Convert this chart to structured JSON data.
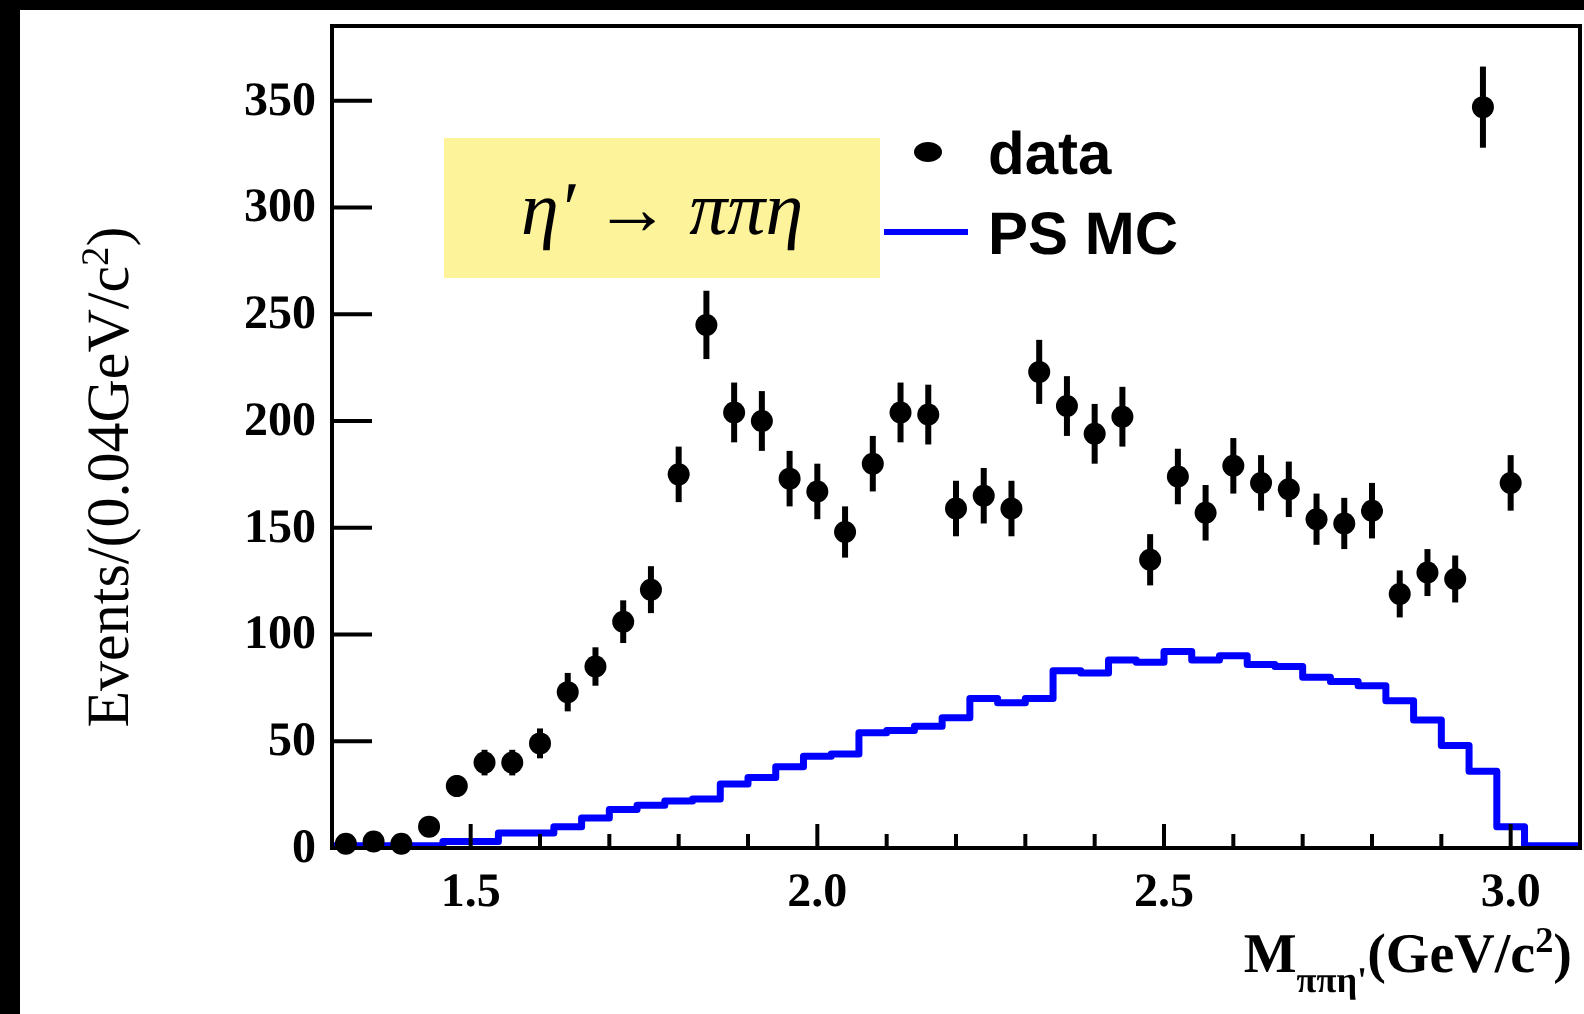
{
  "chart_data": {
    "type": "scatter",
    "xlabel": "M$_{ππη'}$(GeV/c$^{2}$)",
    "ylabel": "Events/(0.04GeV/c$^{2}$)",
    "annotations": [
      "η′ → ππη"
    ],
    "xlim": [
      1.3,
      3.1
    ],
    "ylim": [
      0,
      385
    ],
    "xticks": [
      {
        "value": 1.3,
        "label": null
      },
      {
        "value": 1.4,
        "label": null
      },
      1.5,
      {
        "value": 1.6,
        "label": null
      },
      {
        "value": 1.7,
        "label": null
      },
      {
        "value": 1.8,
        "label": null
      },
      {
        "value": 1.9,
        "label": null
      },
      {
        "value": 2,
        "label": "2.0"
      },
      {
        "value": 2.1,
        "label": null
      },
      {
        "value": 2.2,
        "label": null
      },
      {
        "value": 2.3,
        "label": null
      },
      {
        "value": 2.4,
        "label": null
      },
      2.5,
      {
        "value": 2.6,
        "label": null
      },
      {
        "value": 2.7,
        "label": null
      },
      {
        "value": 2.8,
        "label": null
      },
      {
        "value": 2.9,
        "label": null
      },
      {
        "value": 3,
        "label": "3.0"
      }
    ],
    "yticks": [
      0,
      50,
      100,
      150,
      200,
      250,
      300,
      350
    ],
    "legend": "top",
    "marker": "circle",
    "grid": false,
    "series": [
      {
        "name": "data",
        "color": "#000000",
        "x": [
          1.32,
          1.36,
          1.4,
          1.44,
          1.48,
          1.52,
          1.56,
          1.6,
          1.64,
          1.68,
          1.72,
          1.76,
          1.8,
          1.84,
          1.88,
          1.92,
          1.96,
          2.0,
          2.04,
          2.08,
          2.12,
          2.16,
          2.2,
          2.24,
          2.28,
          2.32,
          2.36,
          2.4,
          2.44,
          2.48,
          2.52,
          2.56,
          2.6,
          2.64,
          2.68,
          2.72,
          2.76,
          2.8,
          2.84,
          2.88,
          2.92,
          2.96,
          3.0
        ],
        "values": [
          2,
          3,
          2,
          10,
          29,
          40,
          40,
          49,
          73,
          85,
          106,
          121,
          175,
          245,
          204,
          200,
          173,
          167,
          148,
          180,
          204,
          203,
          159,
          165,
          159,
          223,
          207,
          194,
          202,
          135,
          174,
          157,
          179,
          171,
          168,
          154,
          152,
          158,
          119,
          129,
          126,
          347,
          171
        ],
        "errors": [
          1,
          2,
          1,
          3,
          5,
          6,
          6,
          7,
          9,
          9,
          10,
          11,
          13,
          16,
          14,
          14,
          13,
          13,
          12,
          13,
          14,
          14,
          13,
          13,
          13,
          15,
          14,
          14,
          14,
          12,
          13,
          13,
          13,
          13,
          13,
          12,
          12,
          13,
          11,
          11,
          11,
          19,
          13
        ]
      },
      {
        "name": "PS MC",
        "type": "histogram",
        "color": "#0000ff",
        "bins": [
          1.3,
          1.34,
          1.38,
          1.42,
          1.46,
          1.5,
          1.54,
          1.58,
          1.62,
          1.66,
          1.7,
          1.74,
          1.78,
          1.82,
          1.86,
          1.9,
          1.94,
          1.98,
          2.02,
          2.06,
          2.1,
          2.14,
          2.18,
          2.22,
          2.26,
          2.3,
          2.34,
          2.38,
          2.42,
          2.46,
          2.5,
          2.54,
          2.58,
          2.62,
          2.66,
          2.7,
          2.74,
          2.78,
          2.82,
          2.86,
          2.9,
          2.94,
          2.98,
          3.02,
          3.06,
          3.1
        ],
        "values": [
          1,
          1,
          1,
          1,
          3,
          3,
          7,
          7,
          10,
          14,
          18,
          20,
          22,
          23,
          30,
          33,
          38,
          43,
          44,
          54,
          55,
          57,
          61,
          70,
          68,
          70,
          83,
          82,
          88,
          87,
          92,
          88,
          90,
          86,
          85,
          80,
          78,
          76,
          69,
          60,
          48,
          36,
          10,
          1,
          1
        ]
      }
    ]
  }
}
